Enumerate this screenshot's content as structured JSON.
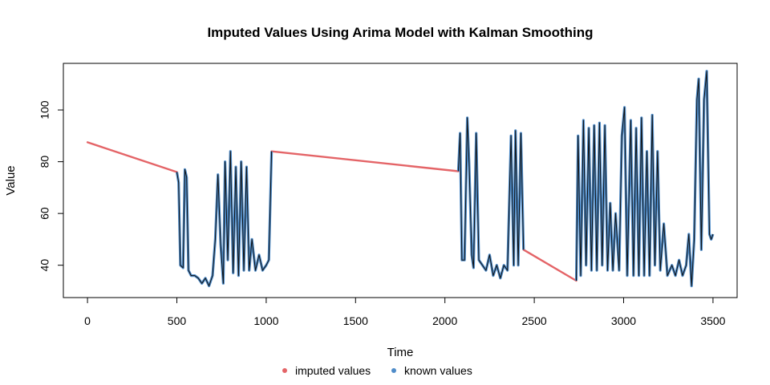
{
  "chart_data": {
    "type": "line",
    "title": "Imputed Values Using Arima Model with Kalman Smoothing",
    "xlabel": "Time",
    "ylabel": "Value",
    "xlim": [
      -135,
      3635
    ],
    "ylim": [
      27.5,
      118
    ],
    "x_ticks": [
      0,
      500,
      1000,
      1500,
      2000,
      2500,
      3000,
      3500
    ],
    "x_tick_labels": [
      "0",
      "500",
      "1000",
      "1500",
      "2000",
      "2500",
      "3000",
      "3500"
    ],
    "y_ticks": [
      40,
      60,
      80,
      100
    ],
    "y_tick_labels": [
      "40",
      "60",
      "80",
      "100"
    ],
    "grid": false,
    "legend_position": "bottom",
    "series": [
      {
        "name": "imputed values",
        "color": "#E46467",
        "segments": [
          [
            [
              0,
              87.5
            ],
            [
              500,
              76
            ]
          ],
          [
            [
              1030,
              84
            ],
            [
              2075,
              76.3
            ]
          ],
          [
            [
              2440,
              46
            ],
            [
              2735,
              34
            ]
          ]
        ]
      },
      {
        "name": "known values",
        "color": "#4F8CC9",
        "segments": [
          [
            [
              500,
              76
            ],
            [
              510,
              72
            ],
            [
              520,
              40
            ],
            [
              535,
              39
            ],
            [
              545,
              77
            ],
            [
              555,
              74
            ],
            [
              565,
              38
            ],
            [
              580,
              36
            ],
            [
              600,
              36
            ],
            [
              620,
              35
            ],
            [
              640,
              33
            ],
            [
              660,
              35
            ],
            [
              680,
              32
            ],
            [
              700,
              36
            ],
            [
              715,
              50
            ],
            [
              730,
              75
            ],
            [
              745,
              48
            ],
            [
              760,
              33
            ],
            [
              770,
              80
            ],
            [
              785,
              42
            ],
            [
              800,
              84
            ],
            [
              815,
              37
            ],
            [
              830,
              78
            ],
            [
              845,
              36
            ],
            [
              860,
              80
            ],
            [
              875,
              38
            ],
            [
              890,
              78
            ],
            [
              905,
              38
            ],
            [
              920,
              50
            ],
            [
              940,
              38
            ],
            [
              960,
              44
            ],
            [
              980,
              38
            ],
            [
              1000,
              40
            ],
            [
              1015,
              42
            ],
            [
              1030,
              84
            ]
          ],
          [
            [
              2075,
              76.3
            ],
            [
              2085,
              91
            ],
            [
              2095,
              42
            ],
            [
              2110,
              42
            ],
            [
              2125,
              97
            ],
            [
              2135,
              80
            ],
            [
              2150,
              44
            ],
            [
              2160,
              39
            ],
            [
              2175,
              91
            ],
            [
              2190,
              42
            ],
            [
              2210,
              40
            ],
            [
              2230,
              38
            ],
            [
              2250,
              44
            ],
            [
              2270,
              36
            ],
            [
              2290,
              40
            ],
            [
              2310,
              35
            ],
            [
              2330,
              40
            ],
            [
              2350,
              38
            ],
            [
              2370,
              90
            ],
            [
              2385,
              40
            ],
            [
              2395,
              92
            ],
            [
              2410,
              40
            ],
            [
              2425,
              91
            ],
            [
              2440,
              46
            ]
          ],
          [
            [
              2735,
              34
            ],
            [
              2745,
              90
            ],
            [
              2760,
              36
            ],
            [
              2775,
              96
            ],
            [
              2790,
              40
            ],
            [
              2805,
              93
            ],
            [
              2820,
              38
            ],
            [
              2835,
              94
            ],
            [
              2850,
              38
            ],
            [
              2865,
              95
            ],
            [
              2880,
              40
            ],
            [
              2895,
              94
            ],
            [
              2910,
              38
            ],
            [
              2925,
              64
            ],
            [
              2940,
              38
            ],
            [
              2955,
              60
            ],
            [
              2975,
              38
            ],
            [
              2990,
              90
            ],
            [
              3005,
              101
            ],
            [
              3020,
              36
            ],
            [
              3040,
              96
            ],
            [
              3055,
              36
            ],
            [
              3070,
              93
            ],
            [
              3085,
              36
            ],
            [
              3100,
              97
            ],
            [
              3115,
              36
            ],
            [
              3130,
              84
            ],
            [
              3145,
              36
            ],
            [
              3160,
              98
            ],
            [
              3175,
              40
            ],
            [
              3190,
              84
            ],
            [
              3205,
              38
            ],
            [
              3225,
              56
            ],
            [
              3245,
              36
            ],
            [
              3270,
              40
            ],
            [
              3290,
              36
            ],
            [
              3310,
              42
            ],
            [
              3330,
              36
            ],
            [
              3350,
              40
            ],
            [
              3365,
              52
            ],
            [
              3380,
              32
            ],
            [
              3395,
              50
            ],
            [
              3410,
              104
            ],
            [
              3420,
              112
            ],
            [
              3435,
              46
            ],
            [
              3450,
              104
            ],
            [
              3465,
              115
            ],
            [
              3480,
              52
            ],
            [
              3490,
              50
            ],
            [
              3500,
              52
            ]
          ]
        ]
      }
    ]
  }
}
